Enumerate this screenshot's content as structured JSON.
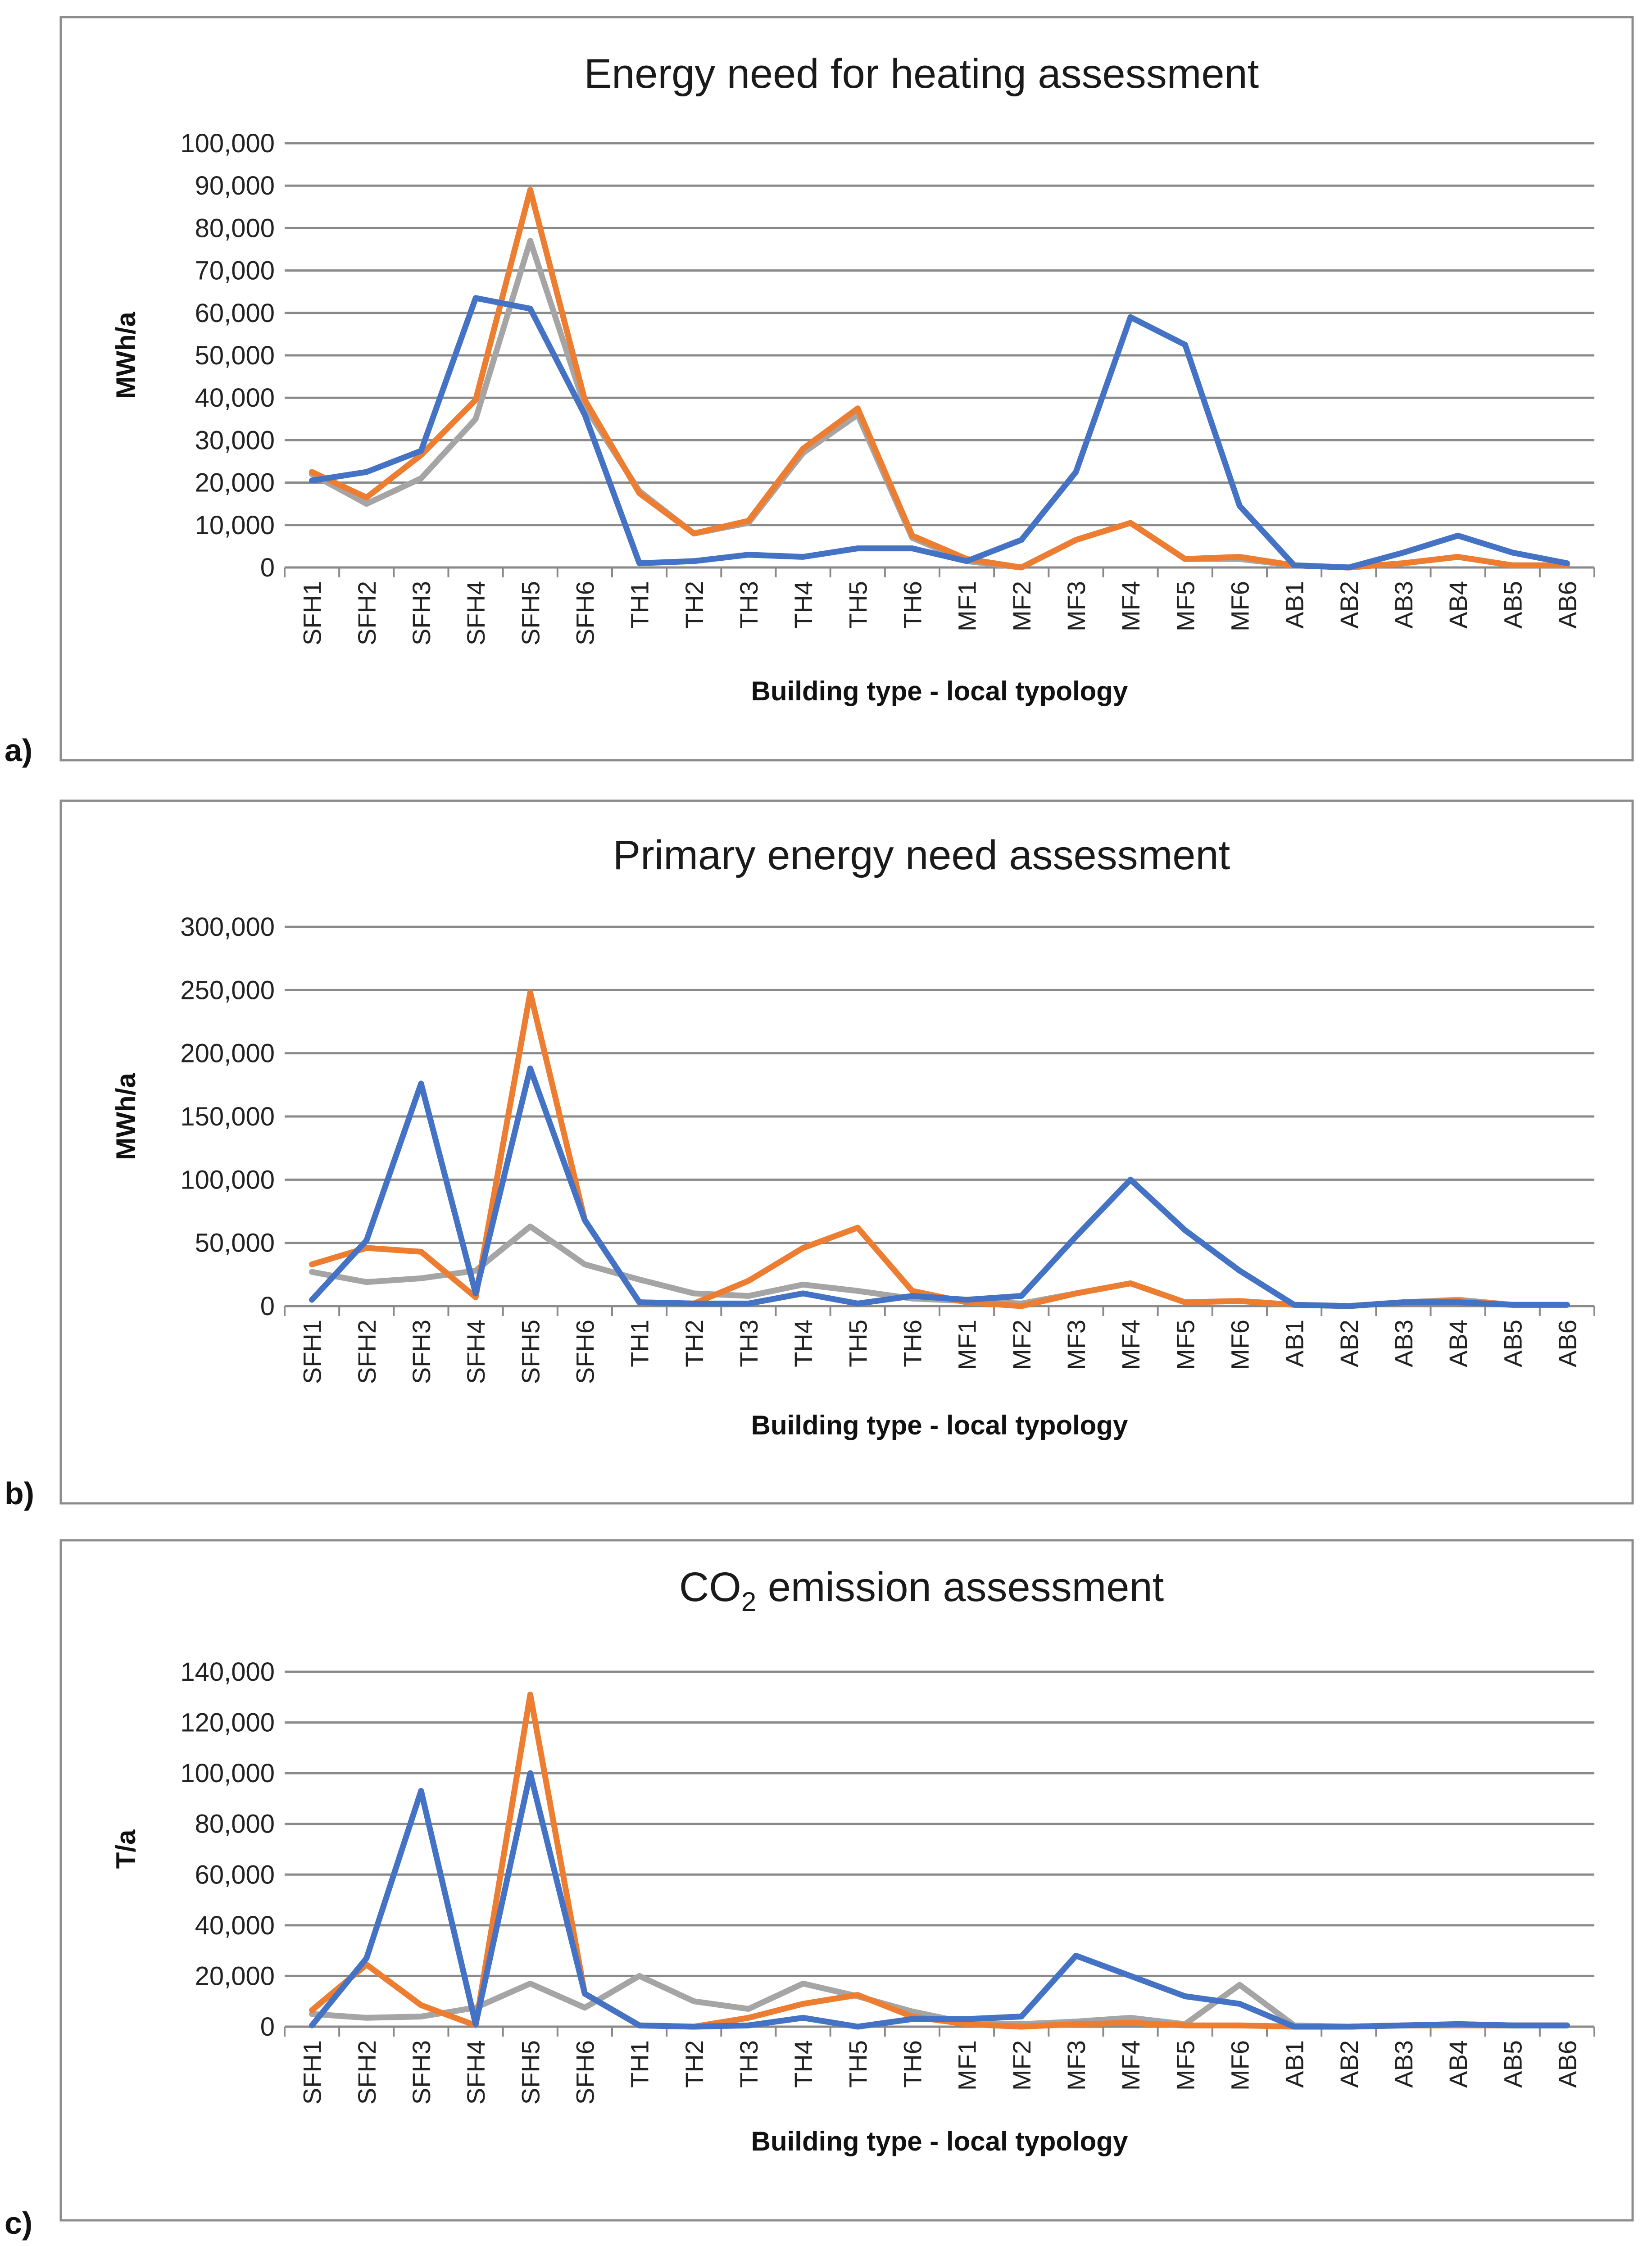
{
  "chart_data": [
    {
      "type": "line",
      "panel_label": "a)",
      "title": "Energy need for heating assessment",
      "title_sub": "",
      "title_suffix": "",
      "xlabel": "Building type - local typology",
      "ylabel": "MWh/a",
      "ylim": [
        0,
        100000
      ],
      "yticks": [
        "0",
        "10,000",
        "20,000",
        "30,000",
        "40,000",
        "50,000",
        "60,000",
        "70,000",
        "80,000",
        "90,000",
        "100,000"
      ],
      "grid": true,
      "categories": [
        "SFH1",
        "SFH2",
        "SFH3",
        "SFH4",
        "SFH5",
        "SFH6",
        "TH1",
        "TH2",
        "TH3",
        "TH4",
        "TH5",
        "TH6",
        "MF1",
        "MF2",
        "MF3",
        "MF4",
        "MF5",
        "MF6",
        "AB1",
        "AB2",
        "AB3",
        "AB4",
        "AB5",
        "AB6"
      ],
      "series": [
        {
          "color": "#4472c4",
          "values": [
            20500,
            22500,
            27500,
            63500,
            61000,
            36000,
            1000,
            1500,
            3000,
            2500,
            4500,
            4500,
            1500,
            6500,
            22500,
            59000,
            52500,
            14500,
            500,
            0,
            3500,
            7500,
            3500,
            1000
          ]
        },
        {
          "color": "#ed7d31",
          "values": [
            22500,
            16500,
            26500,
            39500,
            89000,
            39500,
            17500,
            8000,
            11000,
            28000,
            37500,
            7500,
            2000,
            0,
            6500,
            10500,
            2000,
            2500,
            500,
            0,
            1000,
            2500,
            500,
            500
          ]
        },
        {
          "color": "#a5a5a5",
          "values": [
            22000,
            15000,
            21000,
            35000,
            77000,
            38000,
            18000,
            8000,
            10500,
            27000,
            36000,
            7000,
            1500,
            0,
            6500,
            10500,
            2000,
            2000,
            500,
            0,
            1000,
            2500,
            500,
            500
          ]
        }
      ]
    },
    {
      "type": "line",
      "panel_label": "b)",
      "title": "Primary energy need assessment",
      "title_sub": "",
      "title_suffix": "",
      "xlabel": "Building type - local typology",
      "ylabel": "MWh/a",
      "ylim": [
        0,
        300000
      ],
      "yticks": [
        "0",
        "50,000",
        "100,000",
        "150,000",
        "200,000",
        "250,000",
        "300,000"
      ],
      "grid": true,
      "categories": [
        "SFH1",
        "SFH2",
        "SFH3",
        "SFH4",
        "SFH5",
        "SFH6",
        "TH1",
        "TH2",
        "TH3",
        "TH4",
        "TH5",
        "TH6",
        "MF1",
        "MF2",
        "MF3",
        "MF4",
        "MF5",
        "MF6",
        "AB1",
        "AB2",
        "AB3",
        "AB4",
        "AB5",
        "AB6"
      ],
      "series": [
        {
          "color": "#4472c4",
          "values": [
            5000,
            52000,
            176000,
            10000,
            188000,
            68000,
            3000,
            2000,
            2000,
            10000,
            2000,
            8000,
            5000,
            8000,
            55000,
            100000,
            60000,
            28000,
            1000,
            0,
            3000,
            3000,
            1000,
            1000
          ]
        },
        {
          "color": "#ed7d31",
          "values": [
            33000,
            46000,
            43000,
            7000,
            248000,
            68000,
            3000,
            2000,
            20000,
            46000,
            62000,
            12000,
            3000,
            0,
            10000,
            18000,
            3000,
            4000,
            1000,
            0,
            3000,
            4000,
            1000,
            1000
          ]
        },
        {
          "color": "#a5a5a5",
          "values": [
            27000,
            19000,
            22000,
            28000,
            63000,
            33000,
            21000,
            10000,
            8000,
            17000,
            12000,
            6000,
            4000,
            2000,
            10000,
            18000,
            3000,
            4000,
            1000,
            0,
            3000,
            5000,
            1000,
            1000
          ]
        }
      ]
    },
    {
      "type": "line",
      "panel_label": "c)",
      "title": "CO",
      "title_sub": "2",
      "title_suffix": " emission assessment",
      "xlabel": "Building type - local typology",
      "ylabel": "T/a",
      "ylim": [
        0,
        140000
      ],
      "yticks": [
        "0",
        "20,000",
        "40,000",
        "60,000",
        "80,000",
        "100,000",
        "120,000",
        "140,000"
      ],
      "grid": true,
      "categories": [
        "SFH1",
        "SFH2",
        "SFH3",
        "SFH4",
        "SFH5",
        "SFH6",
        "TH1",
        "TH2",
        "TH3",
        "TH4",
        "TH5",
        "TH6",
        "MF1",
        "MF2",
        "MF3",
        "MF4",
        "MF5",
        "MF6",
        "AB1",
        "AB2",
        "AB3",
        "AB4",
        "AB5",
        "AB6"
      ],
      "series": [
        {
          "color": "#4472c4",
          "values": [
            500,
            27000,
            93000,
            1000,
            100000,
            13000,
            500,
            0,
            500,
            3500,
            0,
            3000,
            3000,
            4000,
            28000,
            20000,
            12000,
            9000,
            0,
            0,
            500,
            1000,
            500,
            500
          ]
        },
        {
          "color": "#ed7d31",
          "values": [
            6500,
            24500,
            8500,
            500,
            131000,
            13000,
            500,
            0,
            3500,
            9000,
            12500,
            4000,
            1000,
            0,
            1000,
            1500,
            500,
            500,
            0,
            0,
            500,
            500,
            500,
            500
          ]
        },
        {
          "color": "#a5a5a5",
          "values": [
            5000,
            3500,
            4000,
            7500,
            17000,
            7500,
            20000,
            10000,
            7000,
            17000,
            12000,
            6000,
            1500,
            1000,
            2000,
            3500,
            1000,
            16500,
            500,
            0,
            500,
            1000,
            500,
            500
          ]
        }
      ]
    }
  ]
}
